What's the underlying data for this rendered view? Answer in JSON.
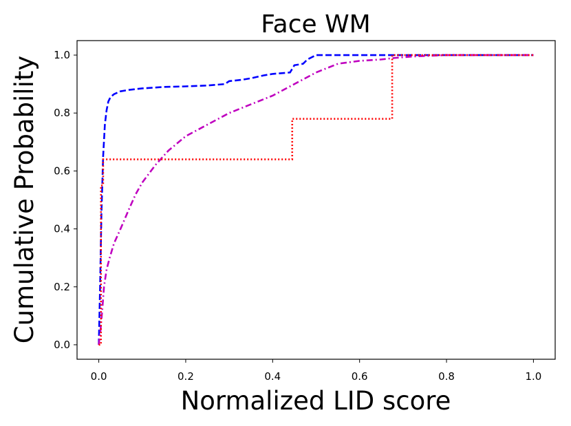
{
  "chart_data": {
    "type": "line",
    "title": "Face WM",
    "xlabel": "Normalized LID score",
    "ylabel": "Cumulative Probability",
    "xlim": [
      -0.05,
      1.05
    ],
    "ylim": [
      -0.05,
      1.05
    ],
    "xticks": [
      0.0,
      0.2,
      0.4,
      0.6,
      0.8,
      1.0
    ],
    "yticks": [
      0.0,
      0.2,
      0.4,
      0.6,
      0.8,
      1.0
    ],
    "xtick_labels": [
      "0.0",
      "0.2",
      "0.4",
      "0.6",
      "0.8",
      "1.0"
    ],
    "ytick_labels": [
      "0.0",
      "0.2",
      "0.4",
      "0.6",
      "0.8",
      "1.0"
    ],
    "grid": false,
    "series": [
      {
        "name": "blue-dashed",
        "color": "#0000ff",
        "style": "dashed",
        "x": [
          0.0,
          0.003,
          0.006,
          0.01,
          0.014,
          0.018,
          0.022,
          0.027,
          0.035,
          0.05,
          0.07,
          0.1,
          0.15,
          0.2,
          0.25,
          0.29,
          0.3,
          0.33,
          0.35,
          0.38,
          0.4,
          0.44,
          0.45,
          0.47,
          0.48,
          0.5,
          1.0
        ],
        "y": [
          0.0,
          0.2,
          0.45,
          0.65,
          0.76,
          0.81,
          0.84,
          0.855,
          0.865,
          0.875,
          0.88,
          0.885,
          0.89,
          0.892,
          0.895,
          0.9,
          0.91,
          0.915,
          0.92,
          0.93,
          0.935,
          0.94,
          0.965,
          0.97,
          0.985,
          1.0,
          1.0
        ]
      },
      {
        "name": "magenta-dashdot",
        "color": "#bf00bf",
        "style": "dashdot",
        "x": [
          0.0,
          0.004,
          0.008,
          0.012,
          0.018,
          0.025,
          0.035,
          0.05,
          0.07,
          0.085,
          0.1,
          0.13,
          0.16,
          0.2,
          0.25,
          0.3,
          0.35,
          0.4,
          0.45,
          0.5,
          0.55,
          0.6,
          0.65,
          0.68,
          0.72,
          0.8,
          1.0
        ],
        "y": [
          0.0,
          0.05,
          0.12,
          0.2,
          0.26,
          0.3,
          0.35,
          0.4,
          0.47,
          0.52,
          0.56,
          0.62,
          0.67,
          0.72,
          0.76,
          0.8,
          0.83,
          0.86,
          0.9,
          0.94,
          0.97,
          0.98,
          0.985,
          0.99,
          0.995,
          1.0,
          1.0
        ]
      },
      {
        "name": "red-dotted",
        "color": "#ff0000",
        "style": "dotted",
        "step": true,
        "x": [
          0.0,
          0.005,
          0.01,
          0.445,
          0.675,
          1.0
        ],
        "y": [
          0.0,
          0.55,
          0.64,
          0.78,
          1.0,
          1.0
        ]
      }
    ]
  }
}
